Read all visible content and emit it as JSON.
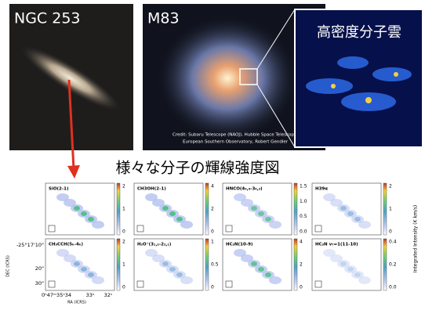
{
  "photos": [
    {
      "label": "NGC 253"
    },
    {
      "label": "M83",
      "credit": [
        "Credit: Subaru Telescope (NAOJ), Hubble Space Telescope,",
        "European Southern Observatory, Robert Gendler"
      ]
    },
    {
      "label": "高密度分子雲"
    }
  ],
  "figure": {
    "title": "様々な分子の輝線強度図",
    "panels": [
      {
        "label": "SiO(2-1)",
        "colorbar_ticks": [
          "2",
          "1",
          "0"
        ]
      },
      {
        "label": "CH3OH(2-1)",
        "colorbar_ticks": [
          "4",
          "2",
          "0"
        ]
      },
      {
        "label": "HNCO(4₀,₄-3₀,₃)",
        "colorbar_ticks": [
          "1.5",
          "1.0",
          "0.5",
          "0.0"
        ]
      },
      {
        "label": "H39α",
        "colorbar_ticks": [
          "2",
          "1",
          "0"
        ]
      },
      {
        "label": "CH₃CCH(5ₖ-4ₖ)",
        "colorbar_ticks": [
          "2",
          "1",
          "0"
        ]
      },
      {
        "label": "H₂O⁺(3₁,₂-2₂,₁)",
        "colorbar_ticks": [
          "1",
          "0.5",
          "0"
        ]
      },
      {
        "label": "HC₃N(10-9)",
        "colorbar_ticks": [
          "4",
          "2",
          "0"
        ]
      },
      {
        "label": "HC₃N v₇=1(11-10)",
        "colorbar_ticks": [
          "0.4",
          "0.2",
          "0.0"
        ]
      }
    ],
    "y_axis_title": "DEC (ICRS)",
    "y_tick_labels": [
      "-25°17'10\"",
      "20\"",
      "30\""
    ],
    "x_axis_title": "RA (ICRS)",
    "x_tick_labels": [
      "0ʰ47ᵐ35ˢ34",
      "33ˢ",
      "32ˢ"
    ],
    "colorbar_title": "Integrated Intensity (K km/s)"
  }
}
